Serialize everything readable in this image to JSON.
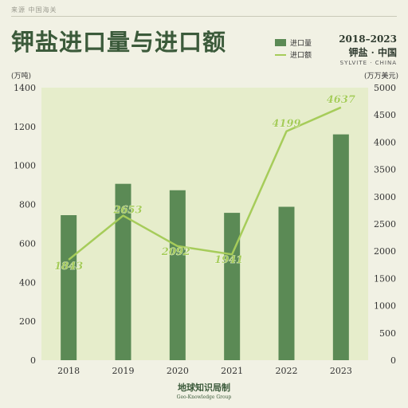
{
  "header": {
    "source": "来源  中国海关",
    "title": "钾盐进口量与进口额",
    "years": "2018–2023",
    "subtitle": "钾盐 · 中国",
    "subtitle_en": "SYLVITE · CHINA"
  },
  "legend": {
    "bar_label": "进口量",
    "line_label": "进口额"
  },
  "brand": {
    "zh": "地球知识局制",
    "en": "Geo-Knowledge Group"
  },
  "colors": {
    "bar": "#5b8a55",
    "line": "#a6cc5a",
    "plot_bg": "#e6edcb",
    "bg": "#f1f1e4"
  },
  "chart_data": {
    "type": "bar",
    "categories": [
      "2018",
      "2019",
      "2020",
      "2021",
      "2022",
      "2023"
    ],
    "series": [
      {
        "name": "进口量",
        "type": "bar",
        "axis": "left",
        "values": [
          745,
          906,
          873,
          757,
          788,
          1160
        ]
      },
      {
        "name": "进口额",
        "type": "line",
        "axis": "right",
        "values": [
          1843,
          2653,
          2092,
          1941,
          4199,
          4637
        ]
      }
    ],
    "left_axis": {
      "unit": "(万吨)",
      "ylim": [
        0,
        1400
      ],
      "ticks": [
        0,
        200,
        400,
        600,
        800,
        1000,
        1200,
        1400
      ]
    },
    "right_axis": {
      "unit": "(万万美元)",
      "ylim": [
        0,
        5000
      ],
      "ticks": [
        0,
        500,
        1000,
        1500,
        2000,
        2500,
        3000,
        3500,
        4000,
        4500,
        5000
      ]
    },
    "line_labels": [
      "1843",
      "2653",
      "2092",
      "1941",
      "4199",
      "4637"
    ],
    "grid": false,
    "legend_position": "top-right"
  }
}
